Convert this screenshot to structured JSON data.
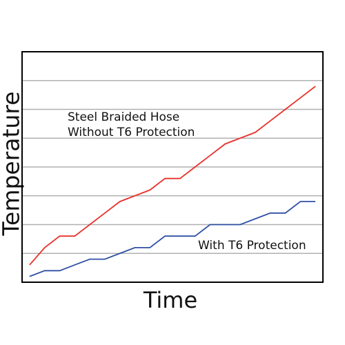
{
  "chart_data": {
    "type": "line",
    "xlabel": "Time",
    "ylabel": "Temperature",
    "x": [
      0.5,
      1.5,
      2.5,
      3.5,
      4.5,
      5.5,
      6.5,
      7.5,
      8.5,
      9.5,
      10.5,
      11.5,
      12.5,
      13.5,
      14.5,
      15.5,
      16.5,
      17.5,
      18.5,
      19.5
    ],
    "xlim": [
      0,
      20
    ],
    "ylim": [
      0,
      8
    ],
    "yticks": [
      1,
      2,
      3,
      4,
      5,
      6,
      7
    ],
    "grid": true,
    "series": [
      {
        "color": "#e8302a",
        "values": [
          0.6,
          1.2,
          1.6,
          1.6,
          2,
          2.4,
          2.8,
          3,
          3.2,
          3.6,
          3.6,
          4,
          4.4,
          4.8,
          5,
          5.2,
          5.6,
          6,
          6.4,
          6.8
        ]
      },
      {
        "color": "#2e4fa3",
        "values": [
          0.2,
          0.4,
          0.4,
          0.6,
          0.8,
          0.8,
          1,
          1.2,
          1.2,
          1.6,
          1.6,
          1.6,
          2,
          2,
          2,
          2.2,
          2.4,
          2.4,
          2.8,
          2.8
        ]
      }
    ],
    "annotations": [
      [
        "Steel Braided Hose",
        "Without T6 Protection"
      ],
      [
        "With T6 Protection"
      ]
    ]
  }
}
